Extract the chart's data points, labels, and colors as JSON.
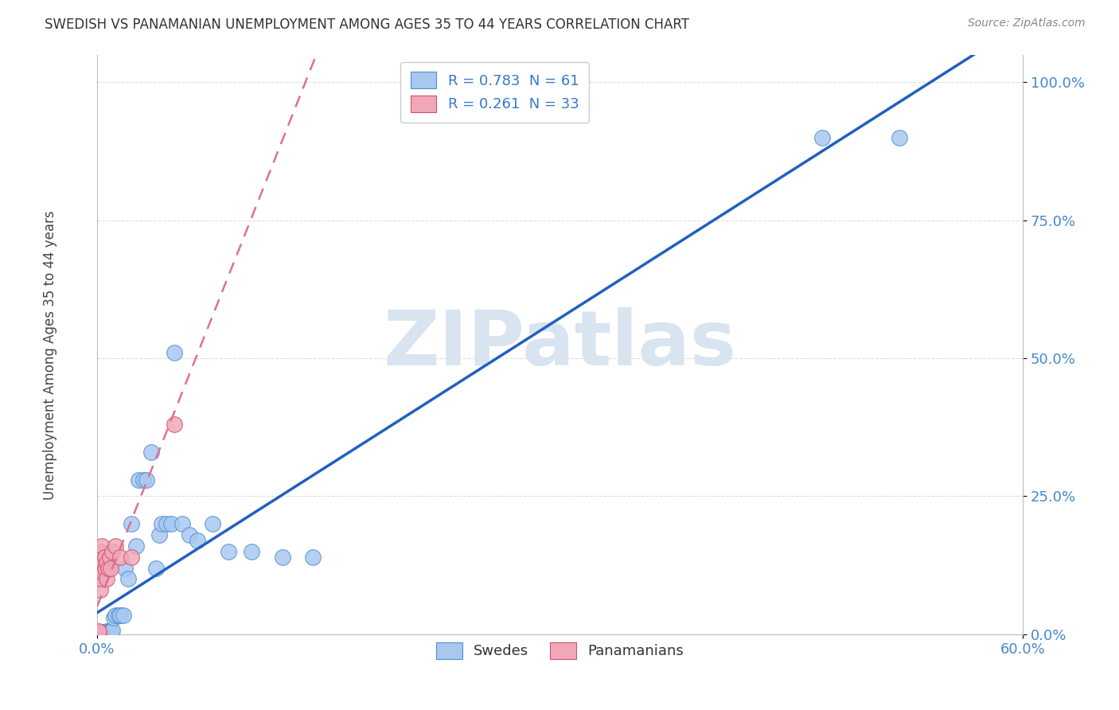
{
  "title": "SWEDISH VS PANAMANIAN UNEMPLOYMENT AMONG AGES 35 TO 44 YEARS CORRELATION CHART",
  "source": "Source: ZipAtlas.com",
  "ylabel": "Unemployment Among Ages 35 to 44 years",
  "legend_label1": "Swedes",
  "legend_label2": "Panamanians",
  "r1": "0.783",
  "n1": "61",
  "r2": "0.261",
  "n2": "33",
  "blue_scatter_color": "#A8C8F0",
  "blue_edge_color": "#5090D0",
  "pink_scatter_color": "#F0A8B8",
  "pink_edge_color": "#D05070",
  "blue_line_color": "#2060C0",
  "pink_line_color": "#E07090",
  "blue_x": [
    0.0,
    0.0,
    0.0,
    0.0,
    0.001,
    0.001,
    0.001,
    0.001,
    0.001,
    0.001,
    0.001,
    0.002,
    0.002,
    0.002,
    0.002,
    0.002,
    0.003,
    0.003,
    0.003,
    0.003,
    0.004,
    0.004,
    0.004,
    0.005,
    0.005,
    0.006,
    0.006,
    0.007,
    0.007,
    0.008,
    0.009,
    0.01,
    0.011,
    0.012,
    0.014,
    0.015,
    0.017,
    0.018,
    0.02,
    0.022,
    0.025,
    0.027,
    0.03,
    0.032,
    0.035,
    0.038,
    0.04,
    0.042,
    0.045,
    0.048,
    0.05,
    0.055,
    0.06,
    0.065,
    0.075,
    0.085,
    0.1,
    0.12,
    0.14,
    0.47,
    0.52
  ],
  "blue_y": [
    0.0,
    0.0,
    0.0,
    0.001,
    0.0,
    0.0,
    0.0,
    0.001,
    0.001,
    0.001,
    0.002,
    0.0,
    0.001,
    0.001,
    0.002,
    0.003,
    0.001,
    0.001,
    0.002,
    0.003,
    0.002,
    0.003,
    0.004,
    0.002,
    0.004,
    0.003,
    0.005,
    0.003,
    0.005,
    0.005,
    0.006,
    0.007,
    0.03,
    0.035,
    0.035,
    0.035,
    0.035,
    0.12,
    0.1,
    0.2,
    0.16,
    0.28,
    0.28,
    0.28,
    0.33,
    0.12,
    0.18,
    0.2,
    0.2,
    0.2,
    0.51,
    0.2,
    0.18,
    0.17,
    0.2,
    0.15,
    0.15,
    0.14,
    0.14,
    0.9,
    0.9
  ],
  "pink_x": [
    0.0,
    0.0,
    0.0,
    0.0,
    0.0,
    0.0,
    0.001,
    0.001,
    0.001,
    0.001,
    0.001,
    0.001,
    0.002,
    0.002,
    0.002,
    0.002,
    0.003,
    0.003,
    0.003,
    0.004,
    0.004,
    0.005,
    0.005,
    0.006,
    0.006,
    0.007,
    0.008,
    0.009,
    0.01,
    0.012,
    0.015,
    0.022,
    0.05
  ],
  "pink_y": [
    0.0,
    0.001,
    0.001,
    0.002,
    0.002,
    0.003,
    0.0,
    0.001,
    0.001,
    0.002,
    0.003,
    0.005,
    0.08,
    0.1,
    0.12,
    0.15,
    0.12,
    0.14,
    0.16,
    0.11,
    0.13,
    0.12,
    0.14,
    0.1,
    0.13,
    0.12,
    0.14,
    0.12,
    0.15,
    0.16,
    0.14,
    0.14,
    0.38
  ],
  "xlim": [
    0.0,
    0.6
  ],
  "ylim": [
    0.0,
    1.05
  ],
  "yticks": [
    0.0,
    0.25,
    0.5,
    0.75,
    1.0
  ],
  "ytick_labels": [
    "0.0%",
    "25.0%",
    "50.0%",
    "75.0%",
    "100.0%"
  ],
  "xtick_labels": [
    "0.0%",
    "60.0%"
  ],
  "background_color": "#FFFFFF",
  "grid_color": "#DDDDDD",
  "watermark_text": "ZIPatlas",
  "watermark_color": "#D8E4F0"
}
